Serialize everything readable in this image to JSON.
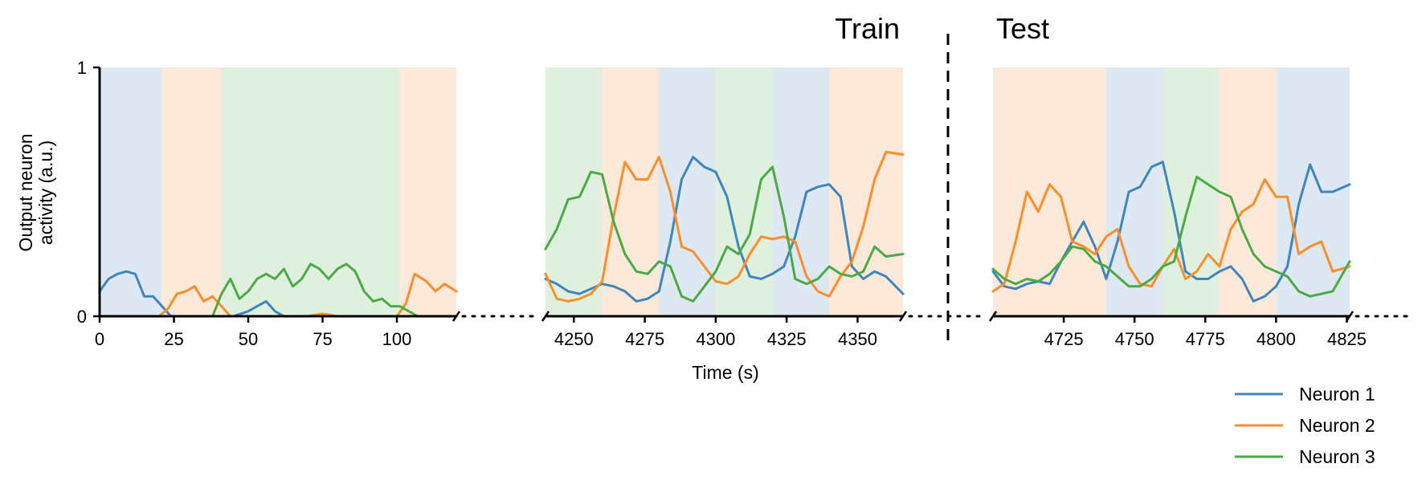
{
  "chart_data": {
    "type": "line",
    "title": "",
    "xlabel": "Time (s)",
    "ylabel_lines": [
      "Output neuron",
      "activity (a.u.)"
    ],
    "ylim": [
      0,
      1
    ],
    "yticks": [
      {
        "value": 0,
        "label": "0"
      },
      {
        "value": 1,
        "label": "1"
      }
    ],
    "section_labels": {
      "train": "Train",
      "test": "Test"
    },
    "colors": {
      "Neuron 1": "#3f86bd",
      "Neuron 2": "#f98e2a",
      "Neuron 3": "#4aab45",
      "Neuron 1_bg": "#dde8f3",
      "Neuron 2_bg": "#fde9d9",
      "Neuron 3_bg": "#dff0de"
    },
    "legend": {
      "position": "bottom-right",
      "entries": [
        "Neuron 1",
        "Neuron 2",
        "Neuron 3"
      ]
    },
    "panels": [
      {
        "xlim": [
          0,
          120
        ],
        "xticks": [
          0,
          25,
          50,
          75,
          100
        ],
        "bands": [
          {
            "from": 0,
            "to": 21,
            "neuron": "Neuron 1"
          },
          {
            "from": 21,
            "to": 41,
            "neuron": "Neuron 2"
          },
          {
            "from": 41,
            "to": 101,
            "neuron": "Neuron 3"
          },
          {
            "from": 101,
            "to": 120,
            "neuron": "Neuron 2"
          }
        ],
        "series": [
          {
            "name": "Neuron 1",
            "x": [
              0,
              3,
              6,
              9,
              12,
              15,
              18,
              21,
              24,
              27,
              30,
              35,
              40,
              45,
              50,
              53,
              56,
              59,
              62,
              65,
              70,
              80,
              90,
              100,
              110,
              120
            ],
            "y": [
              0.1,
              0.15,
              0.17,
              0.18,
              0.17,
              0.08,
              0.08,
              0.04,
              0.0,
              0.0,
              0.0,
              0.0,
              0.0,
              0.0,
              0.02,
              0.04,
              0.06,
              0.02,
              0.0,
              0.0,
              0.0,
              0.0,
              0.0,
              0.0,
              0.0,
              0.0
            ]
          },
          {
            "name": "Neuron 2",
            "x": [
              0,
              15,
              20,
              23,
              26,
              29,
              32,
              35,
              38,
              41,
              44,
              47,
              50,
              55,
              60,
              65,
              70,
              75,
              80,
              85,
              90,
              95,
              100,
              103,
              106,
              110,
              113,
              116,
              120
            ],
            "y": [
              0.0,
              0.0,
              0.0,
              0.03,
              0.09,
              0.1,
              0.12,
              0.06,
              0.08,
              0.04,
              0.0,
              0.0,
              0.0,
              0.0,
              0.0,
              0.0,
              0.0,
              0.01,
              0.0,
              0.0,
              0.0,
              0.0,
              0.0,
              0.05,
              0.17,
              0.14,
              0.1,
              0.13,
              0.1
            ]
          },
          {
            "name": "Neuron 3",
            "x": [
              0,
              30,
              38,
              41,
              44,
              47,
              50,
              53,
              56,
              59,
              62,
              65,
              68,
              71,
              74,
              77,
              80,
              83,
              86,
              89,
              92,
              95,
              98,
              101,
              104,
              107,
              110,
              120
            ],
            "y": [
              0.0,
              0.0,
              0.0,
              0.09,
              0.15,
              0.07,
              0.1,
              0.15,
              0.17,
              0.15,
              0.19,
              0.12,
              0.15,
              0.21,
              0.19,
              0.15,
              0.19,
              0.21,
              0.18,
              0.1,
              0.06,
              0.07,
              0.04,
              0.04,
              0.02,
              0.0,
              0.0,
              0.0
            ]
          }
        ]
      },
      {
        "xlim": [
          4240,
          4366
        ],
        "xticks": [
          4250,
          4275,
          4300,
          4325,
          4350
        ],
        "bands": [
          {
            "from": 4240,
            "to": 4260,
            "neuron": "Neuron 3"
          },
          {
            "from": 4260,
            "to": 4280,
            "neuron": "Neuron 2"
          },
          {
            "from": 4280,
            "to": 4300,
            "neuron": "Neuron 1"
          },
          {
            "from": 4300,
            "to": 4320,
            "neuron": "Neuron 3"
          },
          {
            "from": 4320,
            "to": 4340,
            "neuron": "Neuron 1"
          },
          {
            "from": 4340,
            "to": 4366,
            "neuron": "Neuron 2"
          }
        ],
        "series": [
          {
            "name": "Neuron 1",
            "x": [
              4240,
              4244,
              4248,
              4252,
              4256,
              4260,
              4264,
              4268,
              4272,
              4276,
              4280,
              4284,
              4288,
              4292,
              4296,
              4300,
              4304,
              4308,
              4312,
              4316,
              4320,
              4324,
              4328,
              4332,
              4336,
              4340,
              4344,
              4348,
              4352,
              4356,
              4360,
              4366
            ],
            "y": [
              0.15,
              0.13,
              0.1,
              0.09,
              0.11,
              0.13,
              0.12,
              0.1,
              0.06,
              0.07,
              0.1,
              0.3,
              0.55,
              0.64,
              0.6,
              0.58,
              0.48,
              0.28,
              0.16,
              0.15,
              0.17,
              0.2,
              0.32,
              0.5,
              0.52,
              0.53,
              0.48,
              0.2,
              0.15,
              0.18,
              0.16,
              0.09
            ]
          },
          {
            "name": "Neuron 2",
            "x": [
              4240,
              4244,
              4248,
              4252,
              4256,
              4260,
              4264,
              4268,
              4272,
              4276,
              4280,
              4284,
              4288,
              4292,
              4296,
              4300,
              4304,
              4308,
              4312,
              4316,
              4320,
              4324,
              4328,
              4332,
              4336,
              4340,
              4344,
              4348,
              4352,
              4356,
              4360,
              4366
            ],
            "y": [
              0.17,
              0.07,
              0.06,
              0.07,
              0.09,
              0.14,
              0.4,
              0.62,
              0.55,
              0.55,
              0.64,
              0.5,
              0.28,
              0.26,
              0.2,
              0.14,
              0.13,
              0.16,
              0.25,
              0.32,
              0.31,
              0.32,
              0.3,
              0.16,
              0.1,
              0.08,
              0.16,
              0.22,
              0.36,
              0.55,
              0.66,
              0.65
            ]
          },
          {
            "name": "Neuron 3",
            "x": [
              4240,
              4244,
              4248,
              4252,
              4256,
              4260,
              4264,
              4268,
              4272,
              4276,
              4280,
              4284,
              4288,
              4292,
              4296,
              4300,
              4304,
              4308,
              4312,
              4316,
              4320,
              4324,
              4328,
              4332,
              4336,
              4340,
              4344,
              4348,
              4352,
              4356,
              4360,
              4366
            ],
            "y": [
              0.27,
              0.35,
              0.47,
              0.48,
              0.58,
              0.57,
              0.38,
              0.25,
              0.18,
              0.17,
              0.22,
              0.2,
              0.08,
              0.06,
              0.12,
              0.18,
              0.28,
              0.25,
              0.33,
              0.55,
              0.6,
              0.4,
              0.15,
              0.13,
              0.15,
              0.2,
              0.17,
              0.16,
              0.18,
              0.28,
              0.24,
              0.25
            ]
          }
        ]
      },
      {
        "xlim": [
          4700,
          4826
        ],
        "xticks": [
          4725,
          4750,
          4775,
          4800,
          4825
        ],
        "bands": [
          {
            "from": 4700,
            "to": 4740,
            "neuron": "Neuron 2"
          },
          {
            "from": 4740,
            "to": 4760,
            "neuron": "Neuron 1"
          },
          {
            "from": 4760,
            "to": 4780,
            "neuron": "Neuron 3"
          },
          {
            "from": 4780,
            "to": 4800,
            "neuron": "Neuron 2"
          },
          {
            "from": 4800,
            "to": 4826,
            "neuron": "Neuron 1"
          }
        ],
        "series": [
          {
            "name": "Neuron 1",
            "x": [
              4700,
              4704,
              4708,
              4712,
              4716,
              4720,
              4724,
              4728,
              4732,
              4736,
              4740,
              4744,
              4748,
              4752,
              4756,
              4760,
              4764,
              4768,
              4772,
              4776,
              4780,
              4784,
              4788,
              4792,
              4796,
              4800,
              4804,
              4808,
              4812,
              4816,
              4820,
              4826
            ],
            "y": [
              0.18,
              0.12,
              0.11,
              0.13,
              0.14,
              0.13,
              0.22,
              0.3,
              0.38,
              0.28,
              0.15,
              0.3,
              0.5,
              0.52,
              0.6,
              0.62,
              0.42,
              0.18,
              0.15,
              0.15,
              0.18,
              0.2,
              0.15,
              0.06,
              0.08,
              0.12,
              0.2,
              0.45,
              0.61,
              0.5,
              0.5,
              0.53
            ]
          },
          {
            "name": "Neuron 2",
            "x": [
              4700,
              4704,
              4708,
              4712,
              4716,
              4720,
              4724,
              4728,
              4732,
              4736,
              4740,
              4744,
              4748,
              4752,
              4756,
              4760,
              4764,
              4768,
              4772,
              4776,
              4780,
              4784,
              4788,
              4792,
              4796,
              4800,
              4804,
              4808,
              4812,
              4816,
              4820,
              4826
            ],
            "y": [
              0.1,
              0.13,
              0.3,
              0.5,
              0.42,
              0.53,
              0.48,
              0.3,
              0.28,
              0.25,
              0.32,
              0.35,
              0.2,
              0.13,
              0.12,
              0.2,
              0.27,
              0.15,
              0.18,
              0.25,
              0.2,
              0.35,
              0.42,
              0.45,
              0.55,
              0.48,
              0.48,
              0.25,
              0.28,
              0.3,
              0.18,
              0.2
            ]
          },
          {
            "name": "Neuron 3",
            "x": [
              4700,
              4704,
              4708,
              4712,
              4716,
              4720,
              4724,
              4728,
              4732,
              4736,
              4740,
              4744,
              4748,
              4752,
              4756,
              4760,
              4764,
              4768,
              4772,
              4776,
              4780,
              4784,
              4788,
              4792,
              4796,
              4800,
              4804,
              4808,
              4812,
              4816,
              4820,
              4826
            ],
            "y": [
              0.19,
              0.15,
              0.13,
              0.15,
              0.14,
              0.17,
              0.22,
              0.28,
              0.27,
              0.22,
              0.2,
              0.16,
              0.12,
              0.12,
              0.15,
              0.2,
              0.22,
              0.4,
              0.56,
              0.53,
              0.5,
              0.48,
              0.35,
              0.25,
              0.2,
              0.18,
              0.16,
              0.1,
              0.08,
              0.09,
              0.1,
              0.22
            ]
          }
        ]
      }
    ]
  }
}
